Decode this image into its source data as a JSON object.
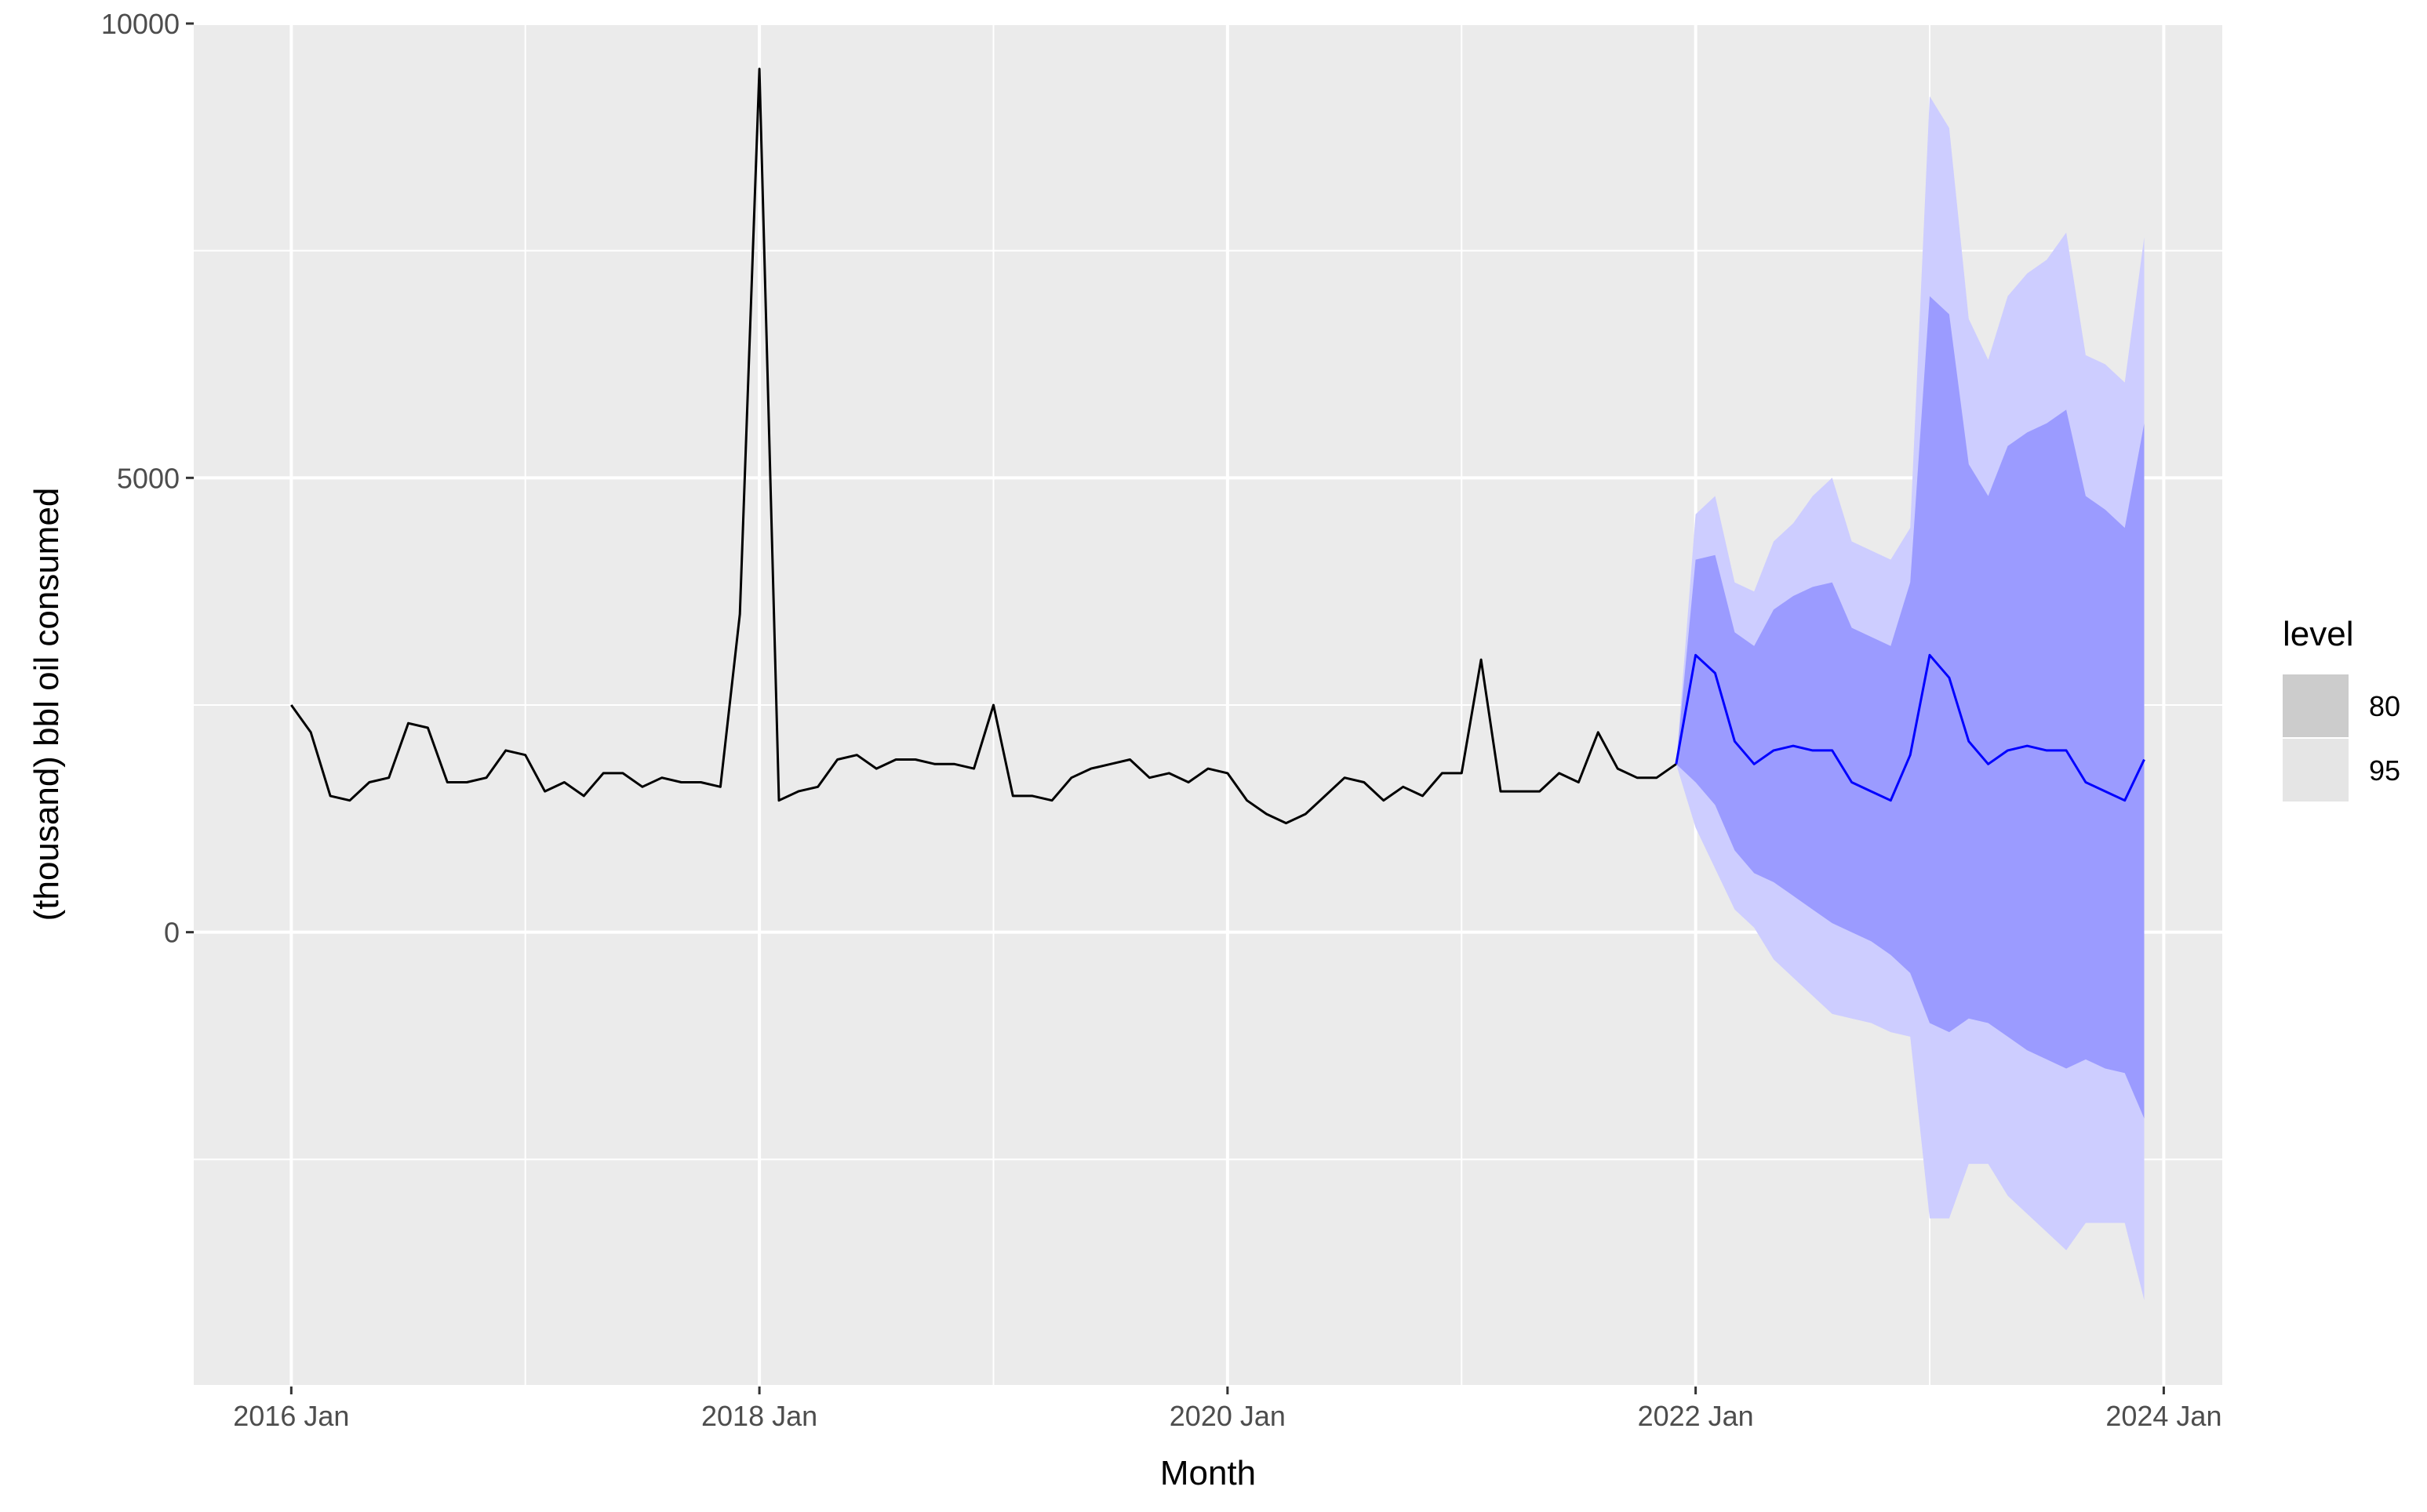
{
  "chart_data": {
    "type": "line",
    "xlabel": "Month",
    "ylabel": "(thousand) bbl oil consumed",
    "ylim": [
      -5000,
      10000
    ],
    "y_ticks": [
      0,
      5000,
      10000
    ],
    "y_tick_labels": [
      "0",
      "5000",
      "10000"
    ],
    "x_ticks": [
      "2016-01",
      "2018-01",
      "2020-01",
      "2022-01",
      "2024-01"
    ],
    "x_tick_labels": [
      "2016 Jan",
      "2018 Jan",
      "2020 Jan",
      "2022 Jan",
      "2024 Jan"
    ],
    "x_range": [
      "2015-08",
      "2024-04"
    ],
    "grid": true,
    "legend": {
      "title": "level",
      "position": "right",
      "items": [
        {
          "label": "80",
          "swatch_color": "#cccccc"
        },
        {
          "label": "95",
          "swatch_color": "#e5e5e5"
        }
      ]
    },
    "colors": {
      "history": "#000000",
      "forecast": "#0000ff",
      "band80": "#9b9bff",
      "band95": "#cdcdff",
      "panel": "#ebebeb",
      "grid": "#ffffff"
    },
    "series": [
      {
        "role": "history",
        "start": "2016-01",
        "values": [
          2500,
          2200,
          1500,
          1450,
          1650,
          1700,
          2300,
          2250,
          1650,
          1650,
          1700,
          2000,
          1950,
          1550,
          1650,
          1500,
          1750,
          1750,
          1600,
          1700,
          1650,
          1650,
          1600,
          3500,
          9500,
          1450,
          1550,
          1600,
          1900,
          1950,
          1800,
          1900,
          1900,
          1850,
          1850,
          1800,
          2500,
          1500,
          1500,
          1450,
          1700,
          1800,
          1850,
          1900,
          1700,
          1750,
          1650,
          1800,
          1750,
          1450,
          1300,
          1200,
          1300,
          1500,
          1700,
          1650,
          1450,
          1600,
          1500,
          1750,
          1750,
          3000,
          1550,
          1550,
          1550,
          1750,
          1650,
          2200,
          1800,
          1700,
          1700,
          1850
        ]
      },
      {
        "role": "forecast",
        "start": "2021-12",
        "values": [
          1850,
          3050,
          2850,
          2100,
          1850,
          2000,
          2050,
          2000,
          2000,
          1650,
          1550,
          1450,
          1950,
          3050,
          2800,
          2100,
          1850,
          2000,
          2050,
          2000,
          2000,
          1650,
          1550,
          1450,
          1900
        ],
        "lo80": [
          1850,
          1650,
          1400,
          900,
          650,
          550,
          400,
          250,
          100,
          0,
          -100,
          -250,
          -450,
          -1000,
          -1100,
          -950,
          -1000,
          -1150,
          -1300,
          -1400,
          -1500,
          -1400,
          -1500,
          -1550,
          -2050
        ],
        "hi80": [
          1850,
          4100,
          4150,
          3300,
          3150,
          3550,
          3700,
          3800,
          3850,
          3350,
          3250,
          3150,
          3850,
          7000,
          6800,
          5150,
          4800,
          5350,
          5500,
          5600,
          5750,
          4800,
          4650,
          4450,
          5600
        ],
        "lo95": [
          1850,
          1150,
          700,
          250,
          50,
          -300,
          -500,
          -700,
          -900,
          -950,
          -1000,
          -1100,
          -1150,
          -3150,
          -3150,
          -2550,
          -2550,
          -2900,
          -3100,
          -3300,
          -3500,
          -3200,
          -3200,
          -3200,
          -4050
        ],
        "hi95": [
          1850,
          4600,
          4800,
          3850,
          3750,
          4300,
          4500,
          4800,
          5000,
          4300,
          4200,
          4100,
          4450,
          9200,
          8850,
          6750,
          6300,
          7000,
          7250,
          7400,
          7700,
          6350,
          6250,
          6050,
          7650
        ]
      }
    ]
  }
}
